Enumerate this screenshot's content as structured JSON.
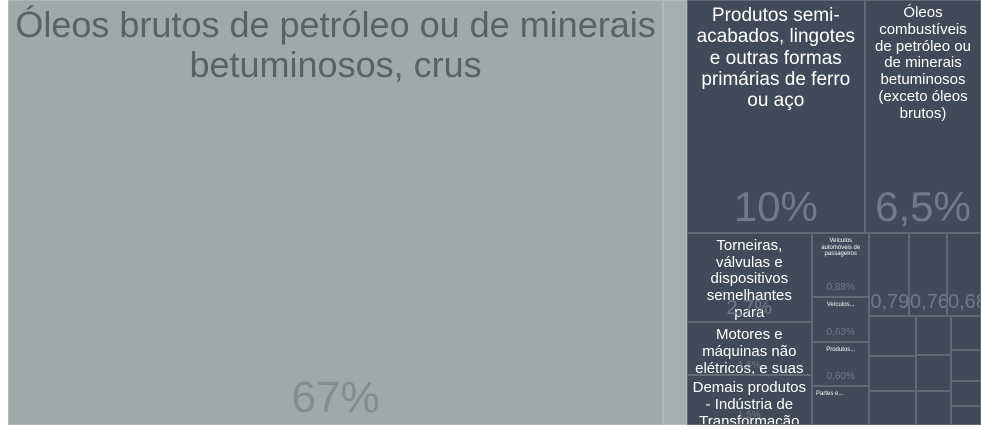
{
  "chart_data": {
    "type": "treemap",
    "categories": [
      "Óleos brutos de petróleo ou de minerais betuminosos, crus",
      null,
      "Produtos semi-acabados, lingotes e outras formas primárias de ferro ou aço",
      "Óleos combustíveis de petróleo ou de minerais betuminosos (exceto óleos brutos)",
      "Torneiras, válvulas e dispositivos semelhantes para canalizações, caldeiras, reservatórios, cubas e outros recipientes",
      "Motores e máquinas não elétricos, e suas partes (exceto motores...",
      "Demais produtos - Indústria de Transformação",
      "Veículos automóveis de passageiros",
      "Veículos...",
      "Produtos...",
      "Partes e...",
      null,
      null,
      null,
      null,
      null,
      null,
      null,
      null,
      null,
      null,
      null,
      null,
      null
    ],
    "values": [
      67,
      2.4,
      10,
      6.5,
      2.7,
      1.6,
      1.5,
      0.88,
      0.63,
      0.6,
      0.54,
      0.79,
      0.76,
      0.68,
      0.45,
      0.4,
      0.38,
      0.33,
      0.3,
      0.28,
      0.25,
      0.22,
      0.18,
      0.14
    ],
    "value_labels": [
      "67%",
      null,
      "10%",
      "6,5%",
      "2,7%",
      "1,6%",
      "1,5%",
      "0,88%",
      "0,63%",
      "0,60%",
      null,
      "0,79%",
      "0,76%",
      "0,68%",
      null,
      null,
      null,
      null,
      null,
      null,
      null,
      null,
      null,
      null
    ],
    "colors": [
      "#9eaaa9",
      "#a5aeae",
      "#3f4b5b",
      "#3f4b5b",
      "#3f4b5b",
      "#3f4b5b",
      "#3f4b5b",
      "#3f4b5b",
      "#3f4b5b",
      "#3f4b5b",
      "#3f4b5b",
      "#3f4b5b",
      "#3f4b5b",
      "#3f4b5b",
      "#3f4b5b",
      "#3f4b5b",
      "#3f4b5b",
      "#3f4b5b",
      "#3f4b5b",
      "#3f4b5b",
      "#3f4b5b",
      "#3f4b5b",
      "#3f4b5b",
      "#3f4b5b"
    ]
  }
}
